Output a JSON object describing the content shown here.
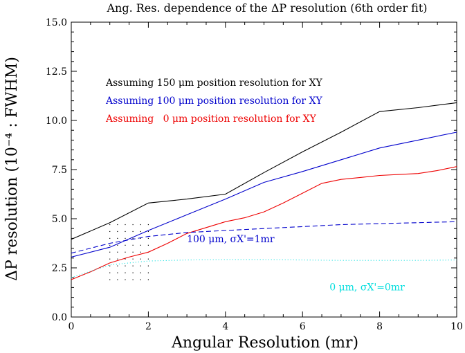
{
  "chart_data": {
    "type": "line",
    "title": "Ang. Res. dependence of the ΔP resolution (6th order fit)",
    "xlabel": "Angular Resolution (mr)",
    "ylabel": "ΔP resolution (10⁻⁴ : FWHM)",
    "xlim": [
      0,
      10
    ],
    "ylim": [
      0,
      15
    ],
    "x_ticks": [
      "0",
      "2",
      "4",
      "6",
      "8",
      "10"
    ],
    "y_ticks": [
      "0.0",
      "2.5",
      "5.0",
      "7.5",
      "10.0",
      "12.5",
      "15.0"
    ],
    "grid": false,
    "series": [
      {
        "name": "Assuming 150 μm position resolution for XY",
        "color": "#000000",
        "style": "solid",
        "x": [
          0,
          1,
          2,
          3,
          4,
          5,
          6,
          7,
          8,
          9,
          10
        ],
        "y": [
          3.95,
          4.8,
          5.8,
          6.0,
          6.25,
          7.35,
          8.4,
          9.4,
          10.45,
          10.65,
          10.9
        ]
      },
      {
        "name": "Assuming 100 μm position resolution for XY",
        "color": "#0000cc",
        "style": "solid",
        "x": [
          0,
          1,
          2,
          3,
          4,
          5,
          6,
          7,
          8,
          9,
          10
        ],
        "y": [
          3.05,
          3.55,
          4.4,
          5.2,
          6.0,
          6.85,
          7.4,
          8.0,
          8.6,
          9.0,
          9.4
        ]
      },
      {
        "name": "Assuming   0 μm position resolution for XY",
        "color": "#ee0000",
        "style": "solid",
        "x": [
          0,
          0.5,
          1,
          1.5,
          2,
          2.5,
          3,
          3.5,
          4,
          4.5,
          5,
          5.5,
          6,
          6.5,
          7,
          7.5,
          8,
          8.5,
          9,
          9.5,
          10
        ],
        "y": [
          1.9,
          2.3,
          2.75,
          3.05,
          3.3,
          3.75,
          4.25,
          4.55,
          4.85,
          5.05,
          5.35,
          5.8,
          6.3,
          6.8,
          7.0,
          7.1,
          7.2,
          7.25,
          7.3,
          7.45,
          7.65
        ]
      },
      {
        "name": "100 μm, σX'=1mr",
        "color": "#0000cc",
        "style": "dashed",
        "x": [
          0,
          1,
          2,
          3,
          4,
          5,
          6,
          7,
          8,
          9,
          10
        ],
        "y": [
          3.25,
          3.75,
          4.1,
          4.3,
          4.4,
          4.5,
          4.6,
          4.7,
          4.75,
          4.8,
          4.85
        ]
      },
      {
        "name": "0 μm, σX'=0mr",
        "color": "#00dddd",
        "style": "dotted",
        "x": [
          0,
          1,
          2,
          3,
          4,
          5,
          6,
          7,
          8,
          9,
          10
        ],
        "y": [
          2.0,
          2.65,
          2.85,
          2.9,
          2.92,
          2.92,
          2.9,
          2.88,
          2.88,
          2.88,
          2.9
        ]
      }
    ],
    "legend": [
      {
        "text": "Assuming 150 μm position resolution for XY",
        "color": "#000000"
      },
      {
        "text": "Assuming 100 μm position resolution for XY",
        "color": "#0000cc"
      },
      {
        "text": "Assuming   0 μm position resolution for XY",
        "color": "#ee0000"
      }
    ],
    "annotations": [
      {
        "text": "100 μm, σX'=1mr",
        "color": "#0000cc",
        "x": 3.0,
        "y": 3.8
      },
      {
        "text": "0 μm, σX'=0mr",
        "color": "#00dddd",
        "x": 6.7,
        "y": 1.35
      }
    ],
    "dot_grid": {
      "x_range": [
        1.0,
        2.0
      ],
      "y_range": [
        1.9,
        5.0
      ],
      "x_step": 0.2,
      "y_step": 0.35,
      "color": "#000000"
    }
  }
}
